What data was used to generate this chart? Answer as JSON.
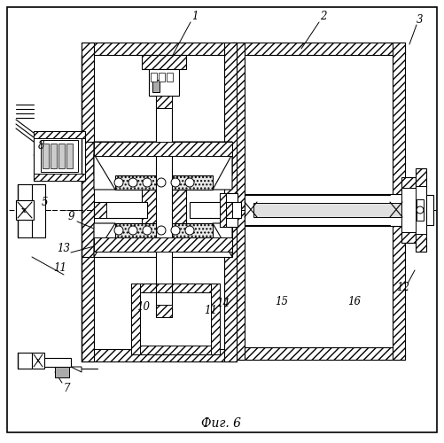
{
  "background_color": "#ffffff",
  "title": "Фиг. 6",
  "title_fontsize": 10,
  "fig_width": 5.01,
  "fig_height": 5.0,
  "dpi": 100
}
